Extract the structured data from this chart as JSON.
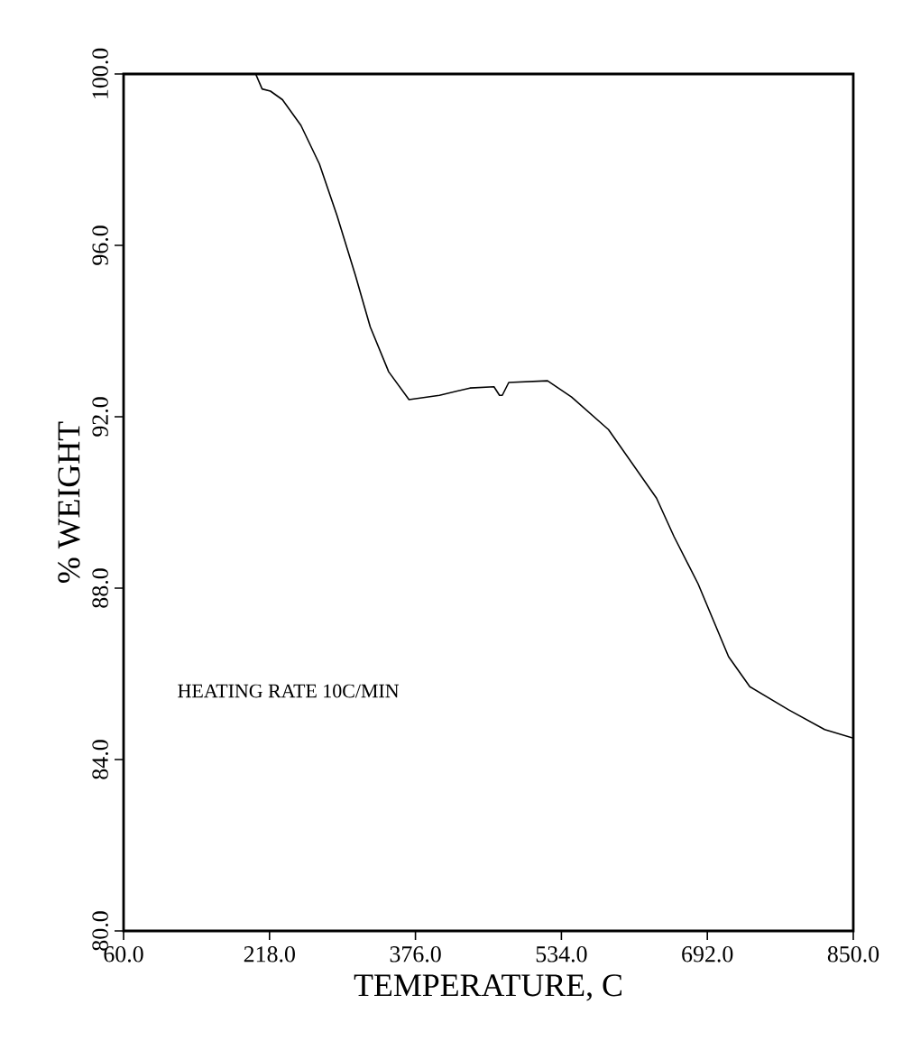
{
  "chart_data": {
    "type": "line",
    "xlabel": "TEMPERATURE, C",
    "ylabel": "% WEIGHT",
    "annotations": [
      "HEATING RATE 10C/MIN"
    ],
    "xlim": [
      60,
      850
    ],
    "ylim": [
      80,
      100
    ],
    "xticks": [
      {
        "value": 60,
        "label": "60.0"
      },
      {
        "value": 218,
        "label": "218.0"
      },
      {
        "value": 376,
        "label": "376.0"
      },
      {
        "value": 534,
        "label": "534.0"
      },
      {
        "value": 692,
        "label": "692.0"
      },
      {
        "value": 850,
        "label": "850.0"
      }
    ],
    "yticks": [
      {
        "value": 80,
        "label": "80.0"
      },
      {
        "value": 84,
        "label": "84.0"
      },
      {
        "value": 88,
        "label": "88.0"
      },
      {
        "value": 92,
        "label": "92.0"
      },
      {
        "value": 96,
        "label": "96.0"
      },
      {
        "value": 100,
        "label": "100.0"
      }
    ],
    "grid": false,
    "marker": "none",
    "line_style": "solid",
    "series": [
      {
        "color": "#000000",
        "x": [
          60,
          120,
          203,
          210,
          219,
          232,
          252,
          272,
          291,
          311,
          327,
          347,
          369,
          402,
          435,
          461,
          467,
          470,
          477,
          519,
          545,
          585,
          637,
          656,
          682,
          715,
          738,
          780,
          819,
          850
        ],
        "values": [
          100,
          100,
          100,
          99.65,
          99.6,
          99.4,
          98.8,
          97.9,
          96.7,
          95.3,
          94.1,
          93.05,
          92.4,
          92.5,
          92.67,
          92.7,
          92.5,
          92.5,
          92.8,
          92.84,
          92.46,
          91.7,
          90.1,
          89.2,
          88.1,
          86.4,
          85.7,
          85.16,
          84.7,
          84.5
        ]
      }
    ]
  }
}
